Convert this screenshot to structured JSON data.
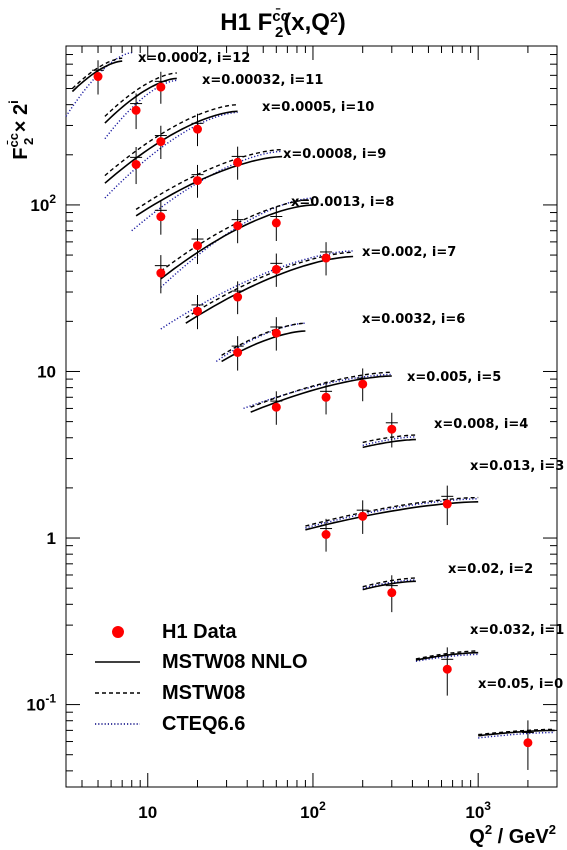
{
  "chart_data": {
    "type": "scatter",
    "title": "H1 F",
    "title_sup": "c̄c",
    "title_sub": "2",
    "title_tail": "(x,Q",
    "title_tail_sup": "2",
    "title_end": ")",
    "ylabel": "F",
    "ylabel_sup": "c̄c",
    "ylabel_sub": "2",
    "ylabel_times": " × 2",
    "ylabel_exp": "i",
    "xlabel": "Q",
    "xlabel_sup": "2",
    "xlabel_unit": " / GeV",
    "xlabel_unit_sup": "2",
    "x_scale": "log",
    "y_scale": "log",
    "xlim": [
      3.2,
      3000
    ],
    "ylim": [
      0.032,
      900
    ],
    "x_ticks": [
      {
        "value": 10,
        "label": "10",
        "sup": ""
      },
      {
        "value": 100,
        "label": "10",
        "sup": "2"
      },
      {
        "value": 1000,
        "label": "10",
        "sup": "3"
      }
    ],
    "y_ticks": [
      {
        "value": 0.1,
        "label": "10",
        "sup": "-1"
      },
      {
        "value": 1,
        "label": "1",
        "sup": ""
      },
      {
        "value": 10,
        "label": "10",
        "sup": ""
      },
      {
        "value": 100,
        "label": "10",
        "sup": "2"
      }
    ],
    "legend_position": "bottom-left",
    "legend": [
      {
        "label": "H1 Data",
        "style": "marker",
        "color": "#ff0000"
      },
      {
        "label": "MSTW08 NNLO",
        "style": "solid",
        "color": "#000000"
      },
      {
        "label": "MSTW08",
        "style": "dashed",
        "color": "#000000"
      },
      {
        "label": "CTEQ6.6",
        "style": "dotted",
        "color": "#00007f"
      }
    ],
    "bins": [
      {
        "label": "x=0.0002, i=12",
        "i": 12,
        "x": 0.0002,
        "points": [
          {
            "q2": 5,
            "y": 590,
            "err": 90
          }
        ],
        "nnlo": {
          "q2": [
            3.5,
            7
          ],
          "y": [
            480,
            730
          ]
        },
        "mstw": {
          "q2": [
            3.5,
            7
          ],
          "y": [
            500,
            760
          ]
        },
        "cteq": {
          "q2": [
            3.2,
            8
          ],
          "y": [
            340,
            820
          ]
        }
      },
      {
        "label": "x=0.00032, i=11",
        "i": 11,
        "x": 0.00032,
        "points": [
          {
            "q2": 8.5,
            "y": 370,
            "err": 60
          },
          {
            "q2": 12,
            "y": 510,
            "err": 70
          }
        ],
        "nnlo": {
          "q2": [
            5.5,
            15
          ],
          "y": [
            310,
            575
          ]
        },
        "mstw": {
          "q2": [
            5.5,
            15
          ],
          "y": [
            340,
            620
          ]
        },
        "cteq": {
          "q2": [
            5.5,
            15
          ],
          "y": [
            250,
            560
          ]
        }
      },
      {
        "label": "x=0.0005, i=10",
        "i": 10,
        "x": 0.0005,
        "points": [
          {
            "q2": 8.5,
            "y": 175,
            "err": 30
          },
          {
            "q2": 12,
            "y": 240,
            "err": 35
          },
          {
            "q2": 20,
            "y": 285,
            "err": 40
          }
        ],
        "nnlo": {
          "q2": [
            5.5,
            35
          ],
          "y": [
            135,
            365
          ]
        },
        "mstw": {
          "q2": [
            5.5,
            35
          ],
          "y": [
            150,
            400
          ]
        },
        "cteq": {
          "q2": [
            5.5,
            35
          ],
          "y": [
            110,
            360
          ]
        }
      },
      {
        "label": "x=0.0008, i=9",
        "i": 9,
        "x": 0.0008,
        "points": [
          {
            "q2": 12,
            "y": 85,
            "err": 13
          },
          {
            "q2": 20,
            "y": 140,
            "err": 20
          },
          {
            "q2": 35,
            "y": 180,
            "err": 26
          }
        ],
        "nnlo": {
          "q2": [
            8.5,
            65
          ],
          "y": [
            86,
            195
          ]
        },
        "mstw": {
          "q2": [
            8.5,
            65
          ],
          "y": [
            94,
            215
          ]
        },
        "cteq": {
          "q2": [
            8,
            65
          ],
          "y": [
            70,
            210
          ]
        }
      },
      {
        "label": "x=0.0013, i=8",
        "i": 8,
        "x": 0.0013,
        "points": [
          {
            "q2": 12,
            "y": 39,
            "err": 7
          },
          {
            "q2": 20,
            "y": 57,
            "err": 9
          },
          {
            "q2": 35,
            "y": 75,
            "err": 11
          },
          {
            "q2": 60,
            "y": 78,
            "err": 12
          }
        ],
        "nnlo": {
          "q2": [
            12,
            100
          ],
          "y": [
            36,
            100
          ]
        },
        "mstw": {
          "q2": [
            12,
            100
          ],
          "y": [
            40,
            108
          ]
        },
        "cteq": {
          "q2": [
            12,
            100
          ],
          "y": [
            32,
            110
          ]
        }
      },
      {
        "label": "x=0.002, i=7",
        "i": 7,
        "x": 0.002,
        "points": [
          {
            "q2": 20,
            "y": 23,
            "err": 3.5
          },
          {
            "q2": 35,
            "y": 28,
            "err": 4
          },
          {
            "q2": 60,
            "y": 41,
            "err": 6
          },
          {
            "q2": 120,
            "y": 48,
            "err": 7
          }
        ],
        "nnlo": {
          "q2": [
            17,
            175
          ],
          "y": [
            19.5,
            49
          ]
        },
        "mstw": {
          "q2": [
            17,
            175
          ],
          "y": [
            21,
            52
          ]
        },
        "cteq": {
          "q2": [
            12,
            175
          ],
          "y": [
            18,
            53
          ]
        }
      },
      {
        "label": "x=0.0032, i=6",
        "i": 6,
        "x": 0.0032,
        "points": [
          {
            "q2": 35,
            "y": 13,
            "err": 2
          },
          {
            "q2": 60,
            "y": 17,
            "err": 2.5
          }
        ],
        "nnlo": {
          "q2": [
            28,
            90
          ],
          "y": [
            11.5,
            17.5
          ]
        },
        "mstw": {
          "q2": [
            28,
            90
          ],
          "y": [
            12.5,
            19.5
          ]
        },
        "cteq": {
          "q2": [
            26,
            90
          ],
          "y": [
            11.5,
            19.5
          ]
        }
      },
      {
        "label": "x=0.005, i=5",
        "i": 5,
        "x": 0.005,
        "points": [
          {
            "q2": 60,
            "y": 6.1,
            "err": 0.9
          },
          {
            "q2": 120,
            "y": 7,
            "err": 1
          },
          {
            "q2": 200,
            "y": 8.4,
            "err": 1.2
          }
        ],
        "nnlo": {
          "q2": [
            42,
            300
          ],
          "y": [
            5.7,
            9.4
          ]
        },
        "mstw": {
          "q2": [
            42,
            300
          ],
          "y": [
            6.1,
            9.9
          ]
        },
        "cteq": {
          "q2": [
            38,
            300
          ],
          "y": [
            6.0,
            9.6
          ]
        }
      },
      {
        "label": "x=0.008, i=4",
        "i": 4,
        "x": 0.008,
        "points": [
          {
            "q2": 300,
            "y": 4.5,
            "err": 0.7
          }
        ],
        "nnlo": {
          "q2": [
            200,
            420
          ],
          "y": [
            3.5,
            3.9
          ]
        },
        "mstw": {
          "q2": [
            200,
            420
          ],
          "y": [
            3.75,
            4.15
          ]
        },
        "cteq": {
          "q2": [
            200,
            420
          ],
          "y": [
            3.6,
            4.05
          ]
        }
      },
      {
        "label": "x=0.013, i=3",
        "i": 3,
        "x": 0.013,
        "points": [
          {
            "q2": 120,
            "y": 1.05,
            "err": 0.15
          },
          {
            "q2": 200,
            "y": 1.35,
            "err": 0.2
          },
          {
            "q2": 650,
            "y": 1.6,
            "err": 0.3
          }
        ],
        "nnlo": {
          "q2": [
            90,
            1000
          ],
          "y": [
            1.12,
            1.65
          ]
        },
        "mstw": {
          "q2": [
            90,
            1000
          ],
          "y": [
            1.18,
            1.75
          ]
        },
        "cteq": {
          "q2": [
            90,
            1000
          ],
          "y": [
            1.15,
            1.72
          ]
        }
      },
      {
        "label": "x=0.02, i=2",
        "i": 2,
        "x": 0.02,
        "points": [
          {
            "q2": 300,
            "y": 0.47,
            "err": 0.08
          }
        ],
        "nnlo": {
          "q2": [
            200,
            420
          ],
          "y": [
            0.49,
            0.55
          ]
        },
        "mstw": {
          "q2": [
            200,
            420
          ],
          "y": [
            0.51,
            0.575
          ]
        },
        "cteq": {
          "q2": [
            200,
            420
          ],
          "y": [
            0.5,
            0.56
          ]
        }
      },
      {
        "label": "x=0.032, i=1",
        "i": 1,
        "x": 0.032,
        "points": [
          {
            "q2": 650,
            "y": 0.163,
            "err": 0.04
          }
        ],
        "nnlo": {
          "q2": [
            420,
            1000
          ],
          "y": [
            0.185,
            0.205
          ]
        },
        "mstw": {
          "q2": [
            420,
            1000
          ],
          "y": [
            0.188,
            0.21
          ]
        },
        "cteq": {
          "q2": [
            420,
            1000
          ],
          "y": [
            0.182,
            0.2
          ]
        }
      },
      {
        "label": "x=0.05, i=0",
        "i": 0,
        "x": 0.05,
        "points": [
          {
            "q2": 2000,
            "y": 0.059,
            "err": 0.015
          }
        ],
        "nnlo": {
          "q2": [
            1000,
            2900
          ],
          "y": [
            0.065,
            0.07
          ]
        },
        "mstw": {
          "q2": [
            1000,
            2900
          ],
          "y": [
            0.066,
            0.071
          ]
        },
        "cteq": {
          "q2": [
            1000,
            2900
          ],
          "y": [
            0.063,
            0.068
          ]
        }
      }
    ]
  }
}
